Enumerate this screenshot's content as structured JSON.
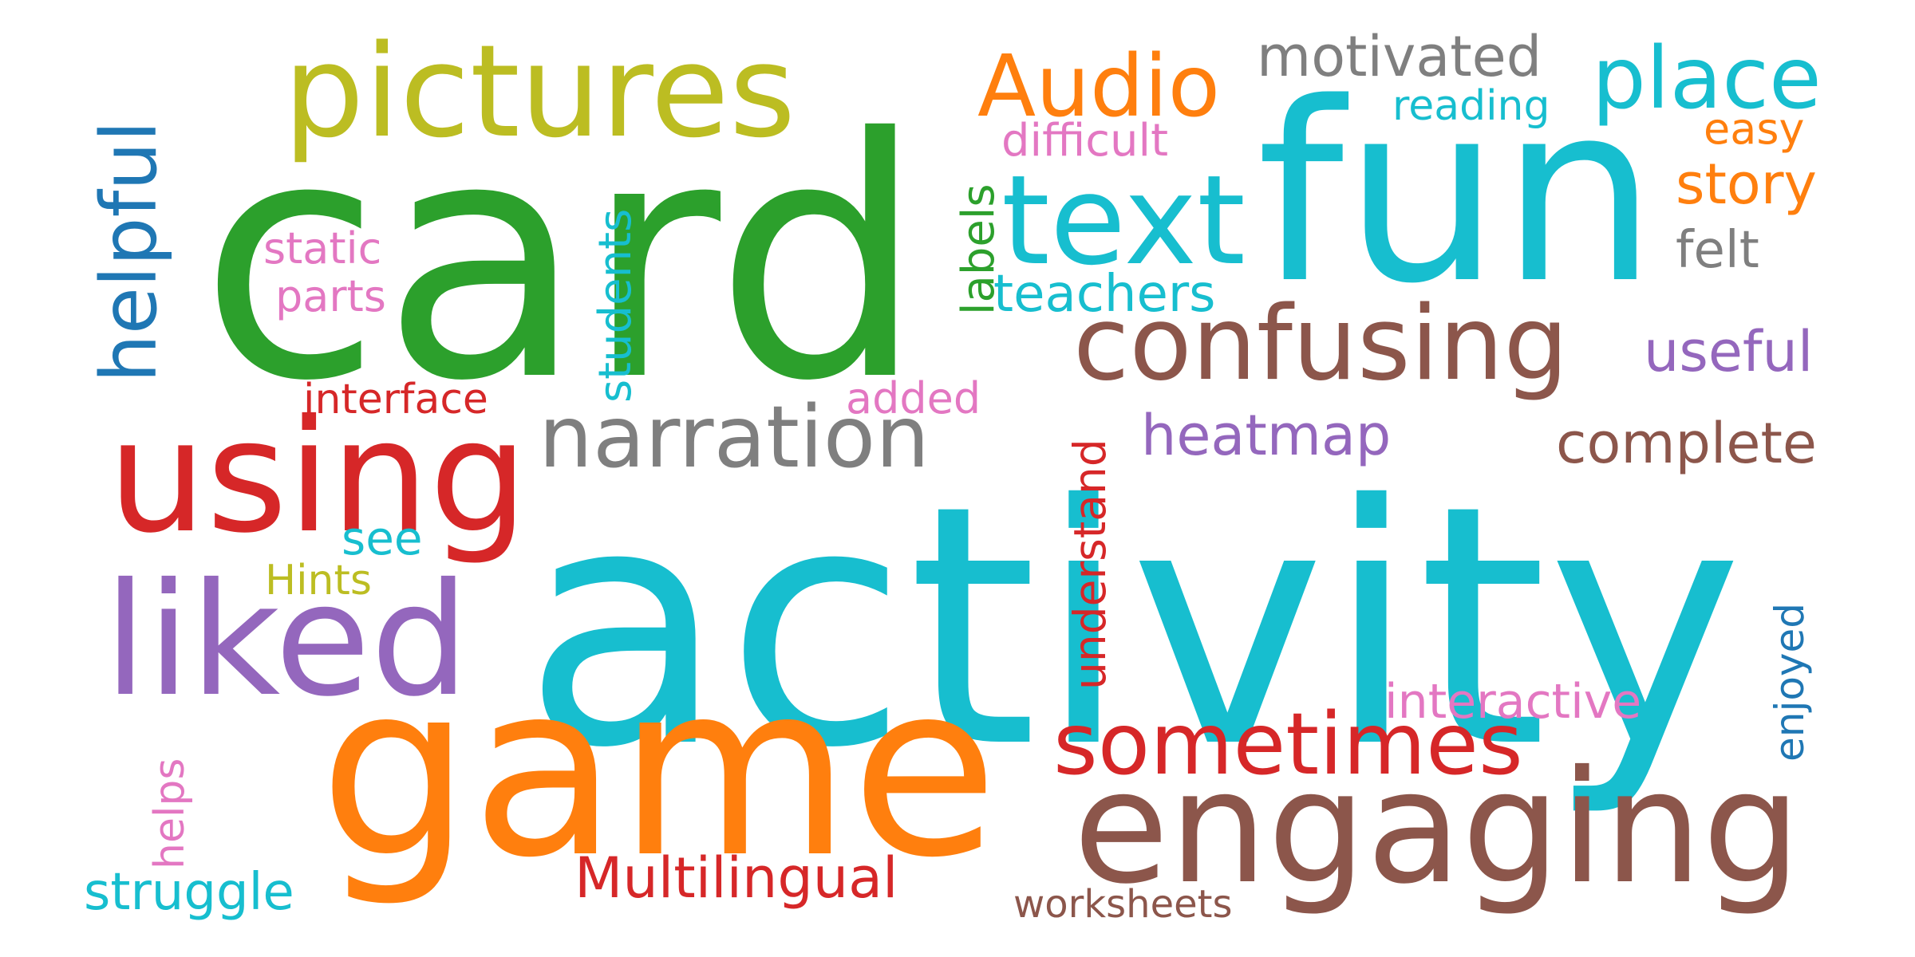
{
  "words": [
    {
      "text": "activity",
      "color": "#17becf"
    },
    {
      "text": "card",
      "color": "#2ca02c"
    },
    {
      "text": "fun",
      "color": "#17becf"
    },
    {
      "text": "game",
      "color": "#ff7f0e"
    },
    {
      "text": "engaging",
      "color": "#8c564b"
    },
    {
      "text": "pictures",
      "color": "#bcbd22"
    },
    {
      "text": "using",
      "color": "#d62728"
    },
    {
      "text": "liked",
      "color": "#9467bd"
    },
    {
      "text": "text",
      "color": "#17becf"
    },
    {
      "text": "confusing",
      "color": "#8c564b"
    },
    {
      "text": "sometimes",
      "color": "#d62728"
    },
    {
      "text": "narration",
      "color": "#7f7f7f"
    },
    {
      "text": "place",
      "color": "#17becf"
    },
    {
      "text": "Audio",
      "color": "#ff7f0e"
    },
    {
      "text": "helpful",
      "color": "#1f77b4"
    },
    {
      "text": "motivated",
      "color": "#7f7f7f"
    },
    {
      "text": "complete",
      "color": "#8c564b"
    },
    {
      "text": "heatmap",
      "color": "#9467bd"
    },
    {
      "text": "Multilingual",
      "color": "#d62728"
    },
    {
      "text": "teachers",
      "color": "#17becf"
    },
    {
      "text": "interactive",
      "color": "#e377c2"
    },
    {
      "text": "useful",
      "color": "#9467bd"
    },
    {
      "text": "story",
      "color": "#ff7f0e"
    },
    {
      "text": "struggle",
      "color": "#17becf"
    },
    {
      "text": "understand",
      "color": "#d62728"
    },
    {
      "text": "students",
      "color": "#17becf"
    },
    {
      "text": "felt",
      "color": "#7f7f7f"
    },
    {
      "text": "difficult",
      "color": "#e377c2"
    },
    {
      "text": "interface",
      "color": "#d62728"
    },
    {
      "text": "worksheets",
      "color": "#8c564b"
    },
    {
      "text": "labels",
      "color": "#2ca02c"
    },
    {
      "text": "enjoyed",
      "color": "#1f77b4"
    },
    {
      "text": "added",
      "color": "#e377c2"
    },
    {
      "text": "static",
      "color": "#e377c2"
    },
    {
      "text": "parts",
      "color": "#e377c2"
    },
    {
      "text": "reading",
      "color": "#17becf"
    },
    {
      "text": "easy",
      "color": "#ff7f0e"
    },
    {
      "text": "see",
      "color": "#17becf"
    },
    {
      "text": "Hints",
      "color": "#bcbd22"
    },
    {
      "text": "helps",
      "color": "#e377c2"
    }
  ]
}
